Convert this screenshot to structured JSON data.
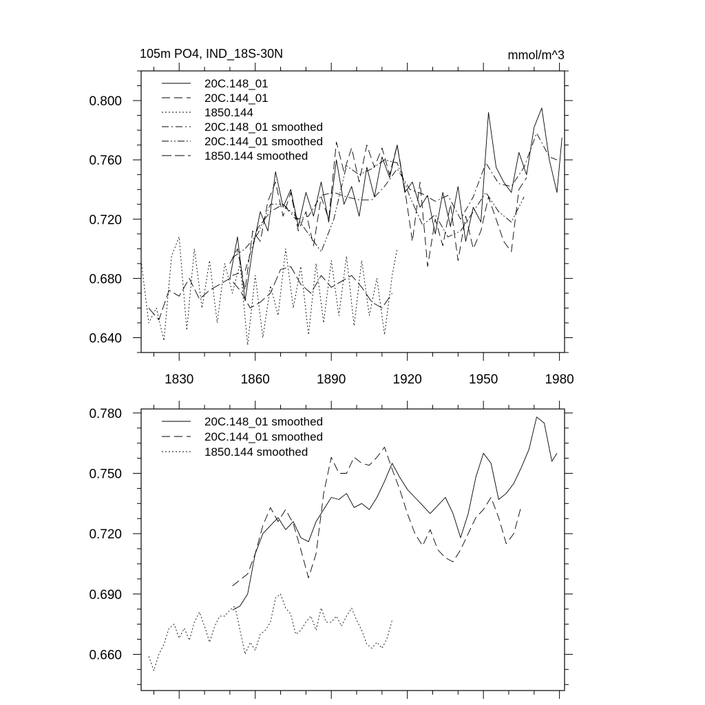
{
  "chart_data": [
    {
      "type": "line",
      "title": "105m PO4, IND_18S-30N",
      "units": "mmol/m^3",
      "xlim": [
        1815,
        1982
      ],
      "ylim": [
        0.63,
        0.82
      ],
      "x_ticks": [
        1830,
        1860,
        1890,
        1920,
        1950,
        1980
      ],
      "y_ticks": [
        0.64,
        0.68,
        0.72,
        0.76,
        0.8
      ],
      "y_tick_labels": [
        "0.640",
        "0.680",
        "0.720",
        "0.760",
        "0.800"
      ],
      "x_tick_labels": [
        "1830",
        "1860",
        "1890",
        "1920",
        "1950",
        "1980"
      ],
      "legend": [
        "20C.148_01",
        "20C.144_01",
        "1850.144",
        "20C.148_01 smoothed",
        "20C.144_01 smoothed",
        "1850.144 smoothed"
      ],
      "legend_position": "top-left",
      "series": [
        {
          "name": "20C.148_01",
          "style": "solid",
          "x": [
            1850,
            1853,
            1856,
            1859,
            1862,
            1865,
            1868,
            1871,
            1874,
            1877,
            1880,
            1883,
            1886,
            1889,
            1892,
            1895,
            1898,
            1901,
            1904,
            1907,
            1910,
            1913,
            1916,
            1919,
            1922,
            1925,
            1928,
            1931,
            1934,
            1937,
            1940,
            1943,
            1946,
            1949,
            1952,
            1955,
            1958,
            1961,
            1964,
            1967,
            1970,
            1973,
            1976,
            1979,
            1981
          ],
          "y": [
            0.68,
            0.708,
            0.665,
            0.7,
            0.725,
            0.712,
            0.752,
            0.728,
            0.74,
            0.715,
            0.738,
            0.722,
            0.745,
            0.718,
            0.76,
            0.73,
            0.742,
            0.722,
            0.755,
            0.735,
            0.762,
            0.748,
            0.77,
            0.738,
            0.745,
            0.728,
            0.736,
            0.71,
            0.738,
            0.715,
            0.742,
            0.705,
            0.728,
            0.718,
            0.792,
            0.755,
            0.745,
            0.738,
            0.765,
            0.75,
            0.782,
            0.795,
            0.76,
            0.738,
            0.775
          ]
        },
        {
          "name": "20C.144_01",
          "style": "dashed",
          "x": [
            1850,
            1853,
            1856,
            1859,
            1862,
            1865,
            1868,
            1871,
            1874,
            1877,
            1880,
            1883,
            1886,
            1889,
            1892,
            1895,
            1898,
            1901,
            1904,
            1907,
            1910,
            1913,
            1916,
            1919,
            1922,
            1925,
            1928,
            1931,
            1934,
            1937,
            1940,
            1943,
            1946,
            1949,
            1952,
            1955,
            1958,
            1961,
            1964,
            1967
          ],
          "y": [
            0.69,
            0.7,
            0.672,
            0.712,
            0.705,
            0.732,
            0.745,
            0.722,
            0.738,
            0.712,
            0.725,
            0.702,
            0.735,
            0.72,
            0.772,
            0.752,
            0.768,
            0.745,
            0.77,
            0.755,
            0.768,
            0.75,
            0.77,
            0.74,
            0.705,
            0.745,
            0.688,
            0.72,
            0.702,
            0.73,
            0.692,
            0.722,
            0.7,
            0.712,
            0.735,
            0.72,
            0.705,
            0.698,
            0.74,
            0.748
          ]
        },
        {
          "name": "1850.144",
          "style": "dotted",
          "x": [
            1815,
            1818,
            1821,
            1824,
            1827,
            1830,
            1833,
            1836,
            1839,
            1842,
            1845,
            1848,
            1851,
            1854,
            1857,
            1860,
            1863,
            1866,
            1869,
            1872,
            1875,
            1878,
            1881,
            1884,
            1887,
            1890,
            1893,
            1896,
            1899,
            1902,
            1905,
            1908,
            1911,
            1914,
            1916
          ],
          "y": [
            0.692,
            0.65,
            0.66,
            0.638,
            0.695,
            0.708,
            0.645,
            0.7,
            0.66,
            0.692,
            0.65,
            0.69,
            0.67,
            0.69,
            0.635,
            0.682,
            0.64,
            0.675,
            0.655,
            0.7,
            0.66,
            0.688,
            0.642,
            0.69,
            0.65,
            0.692,
            0.655,
            0.695,
            0.648,
            0.692,
            0.655,
            0.68,
            0.642,
            0.682,
            0.7
          ]
        },
        {
          "name": "20C.148_01 smoothed",
          "style": "dashdot",
          "x": [
            1851,
            1856,
            1861,
            1866,
            1871,
            1876,
            1881,
            1886,
            1891,
            1896,
            1901,
            1906,
            1911,
            1916,
            1921,
            1926,
            1931,
            1936,
            1941,
            1946,
            1951,
            1956,
            1961,
            1966,
            1971,
            1976,
            1979
          ],
          "y": [
            0.682,
            0.685,
            0.714,
            0.725,
            0.73,
            0.72,
            0.722,
            0.736,
            0.738,
            0.735,
            0.733,
            0.733,
            0.742,
            0.754,
            0.74,
            0.737,
            0.732,
            0.736,
            0.72,
            0.735,
            0.758,
            0.744,
            0.742,
            0.755,
            0.778,
            0.762,
            0.76
          ]
        },
        {
          "name": "20C.144_01 smoothed",
          "style": "dashdotdot",
          "x": [
            1851,
            1856,
            1861,
            1866,
            1871,
            1876,
            1881,
            1886,
            1891,
            1896,
            1901,
            1906,
            1911,
            1916,
            1921,
            1926,
            1931,
            1936,
            1941,
            1946,
            1951,
            1956,
            1961,
            1966
          ],
          "y": [
            0.694,
            0.7,
            0.71,
            0.73,
            0.73,
            0.722,
            0.71,
            0.698,
            0.72,
            0.756,
            0.75,
            0.754,
            0.76,
            0.758,
            0.735,
            0.716,
            0.723,
            0.708,
            0.712,
            0.725,
            0.738,
            0.725,
            0.718,
            0.735
          ]
        },
        {
          "name": "1850.144 smoothed",
          "style": "longdash",
          "x": [
            1818,
            1822,
            1826,
            1830,
            1834,
            1838,
            1842,
            1846,
            1850,
            1854,
            1858,
            1862,
            1866,
            1870,
            1874,
            1878,
            1882,
            1886,
            1890,
            1894,
            1898,
            1902,
            1906,
            1910,
            1914
          ],
          "y": [
            0.66,
            0.652,
            0.672,
            0.668,
            0.68,
            0.666,
            0.672,
            0.676,
            0.68,
            0.672,
            0.66,
            0.664,
            0.67,
            0.686,
            0.688,
            0.676,
            0.67,
            0.682,
            0.674,
            0.678,
            0.682,
            0.674,
            0.664,
            0.66,
            0.67
          ]
        }
      ]
    },
    {
      "type": "line",
      "xlim": [
        1815,
        1982
      ],
      "ylim": [
        0.642,
        0.782
      ],
      "x_ticks": [
        1830,
        1860,
        1890,
        1920,
        1950,
        1980
      ],
      "y_ticks": [
        0.66,
        0.69,
        0.72,
        0.75,
        0.78
      ],
      "y_tick_labels": [
        "0.660",
        "0.690",
        "0.720",
        "0.750",
        "0.780"
      ],
      "legend": [
        "20C.148_01 smoothed",
        "20C.144_01 smoothed",
        "1850.144 smoothed"
      ],
      "legend_position": "top-left",
      "series": [
        {
          "name": "20C.148_01 smoothed",
          "style": "solid",
          "x": [
            1851,
            1854,
            1857,
            1860,
            1863,
            1866,
            1869,
            1872,
            1875,
            1878,
            1881,
            1884,
            1887,
            1890,
            1893,
            1896,
            1899,
            1902,
            1905,
            1908,
            1911,
            1914,
            1917,
            1920,
            1923,
            1926,
            1929,
            1932,
            1935,
            1938,
            1941,
            1944,
            1947,
            1950,
            1953,
            1956,
            1959,
            1962,
            1965,
            1968,
            1971,
            1974,
            1977,
            1979
          ],
          "y": [
            0.682,
            0.684,
            0.69,
            0.71,
            0.72,
            0.724,
            0.728,
            0.722,
            0.726,
            0.718,
            0.716,
            0.726,
            0.732,
            0.738,
            0.737,
            0.74,
            0.733,
            0.735,
            0.732,
            0.738,
            0.746,
            0.755,
            0.748,
            0.742,
            0.738,
            0.734,
            0.73,
            0.734,
            0.738,
            0.73,
            0.718,
            0.73,
            0.748,
            0.76,
            0.755,
            0.737,
            0.74,
            0.745,
            0.753,
            0.762,
            0.778,
            0.775,
            0.756,
            0.76
          ]
        },
        {
          "name": "20C.144_01 smoothed",
          "style": "dashed",
          "x": [
            1851,
            1854,
            1857,
            1860,
            1863,
            1866,
            1869,
            1872,
            1875,
            1878,
            1881,
            1884,
            1887,
            1890,
            1893,
            1896,
            1899,
            1902,
            1905,
            1908,
            1911,
            1914,
            1917,
            1920,
            1923,
            1926,
            1929,
            1932,
            1935,
            1938,
            1941,
            1944,
            1947,
            1950,
            1953,
            1956,
            1959,
            1962,
            1965
          ],
          "y": [
            0.694,
            0.697,
            0.7,
            0.71,
            0.724,
            0.733,
            0.726,
            0.732,
            0.725,
            0.712,
            0.698,
            0.71,
            0.74,
            0.758,
            0.75,
            0.75,
            0.758,
            0.755,
            0.754,
            0.758,
            0.763,
            0.752,
            0.742,
            0.73,
            0.72,
            0.714,
            0.722,
            0.712,
            0.708,
            0.706,
            0.712,
            0.72,
            0.728,
            0.732,
            0.738,
            0.728,
            0.715,
            0.72,
            0.734
          ]
        },
        {
          "name": "1850.144 smoothed",
          "style": "dotted",
          "x": [
            1818,
            1820,
            1822,
            1824,
            1826,
            1828,
            1830,
            1832,
            1834,
            1836,
            1838,
            1840,
            1842,
            1844,
            1846,
            1848,
            1850,
            1852,
            1854,
            1856,
            1858,
            1860,
            1862,
            1864,
            1866,
            1868,
            1870,
            1872,
            1874,
            1876,
            1878,
            1880,
            1882,
            1884,
            1886,
            1888,
            1890,
            1892,
            1894,
            1896,
            1898,
            1900,
            1902,
            1904,
            1906,
            1908,
            1910,
            1912,
            1914
          ],
          "y": [
            0.659,
            0.652,
            0.66,
            0.665,
            0.673,
            0.675,
            0.668,
            0.673,
            0.667,
            0.676,
            0.681,
            0.674,
            0.666,
            0.674,
            0.679,
            0.679,
            0.682,
            0.684,
            0.672,
            0.66,
            0.666,
            0.662,
            0.67,
            0.672,
            0.676,
            0.688,
            0.69,
            0.683,
            0.68,
            0.67,
            0.672,
            0.676,
            0.679,
            0.672,
            0.683,
            0.676,
            0.676,
            0.679,
            0.674,
            0.679,
            0.683,
            0.677,
            0.672,
            0.665,
            0.663,
            0.666,
            0.663,
            0.668,
            0.677
          ]
        }
      ]
    }
  ]
}
